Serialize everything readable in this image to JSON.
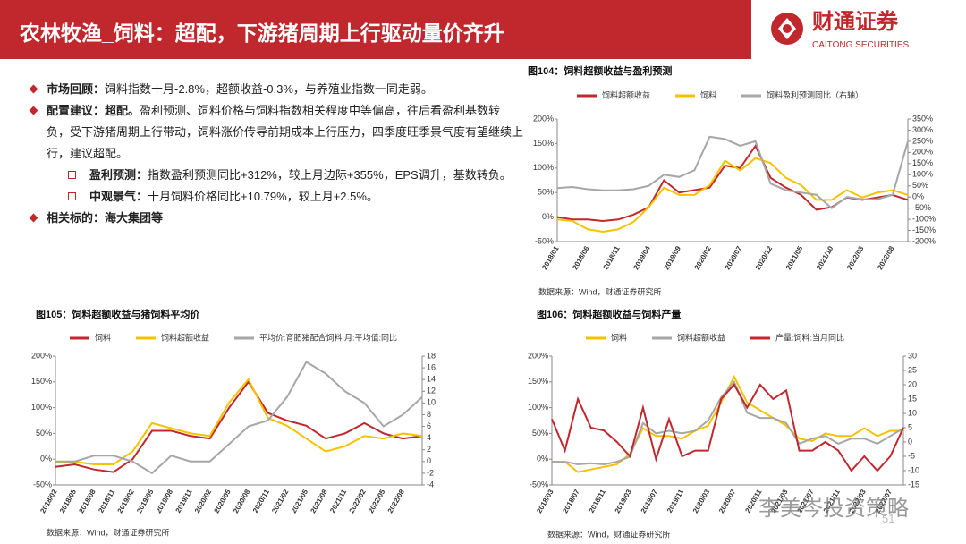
{
  "header": {
    "title": "农林牧渔_饲料：超配，下游猪周期上行驱动量价齐升",
    "logo_cn": "财通证券",
    "logo_en": "CAITONG SECURITIES"
  },
  "bullets": [
    {
      "label": "市场回顾：",
      "text": "饲料指数十月-2.8%，超额收益-0.3%，与养殖业指数一同走弱。"
    },
    {
      "label": "配置建议：超配。",
      "text": "盈利预测、饲料价格与饲料指数相关程度中等偏高，往后看盈利基数转负，受下游猪周期上行带动，饲料涨价传导前期成本上行压力，四季度旺季景气度有望继续上行，建议超配。"
    },
    {
      "label": "盈利预测：",
      "text": "指数盈利预测同比+312%，较上月边际+355%，EPS调升，基数转负。"
    },
    {
      "label": "中观景气：",
      "text": "十月饲料价格同比+10.79%，较上月+2.5%。"
    },
    {
      "label": "相关标的：海大集团等"
    }
  ],
  "page_number": "51",
  "watermark": "李美岑投资策略",
  "chart_data": [
    {
      "type": "line",
      "title": "图104：饲料超额收益与盈利预测",
      "source": "数据来源：Wind，财通证券研究所",
      "categories": [
        "2018/01",
        null,
        "2018/06",
        null,
        "2018/11",
        null,
        "2019/04",
        null,
        "2019/09",
        null,
        "2020/02",
        null,
        "2020/07",
        null,
        "2020/12",
        null,
        "2021/05",
        null,
        "2021/10",
        null,
        "2022/03",
        null,
        "2022/08",
        null
      ],
      "series": [
        {
          "name": "饲料超额收益",
          "color": "#c0282d",
          "values": [
            0,
            -5,
            -5,
            -8,
            -5,
            5,
            20,
            75,
            50,
            55,
            60,
            105,
            100,
            145,
            80,
            60,
            45,
            15,
            20,
            40,
            35,
            40,
            45,
            35
          ]
        },
        {
          "name": "饲料",
          "color": "#f5c200",
          "values": [
            -5,
            -8,
            -25,
            -30,
            -25,
            -10,
            20,
            60,
            45,
            45,
            65,
            115,
            95,
            120,
            110,
            80,
            65,
            35,
            35,
            55,
            40,
            50,
            55,
            45
          ]
        },
        {
          "name": "饲料盈利预测同比（右轴）",
          "color": "#a6a6a6",
          "axis": "y2",
          "values": [
            40,
            45,
            35,
            30,
            30,
            35,
            50,
            100,
            90,
            120,
            270,
            260,
            230,
            250,
            60,
            30,
            20,
            10,
            -50,
            0,
            -10,
            -10,
            10,
            250
          ]
        }
      ],
      "ylim": [
        -50,
        200
      ],
      "yticks": [
        {
          "value": -50,
          "label": "-50%"
        },
        {
          "value": 0,
          "label": "0%"
        },
        {
          "value": 50,
          "label": "50%"
        },
        {
          "value": 100,
          "label": "100%"
        },
        {
          "value": 150,
          "label": "150%"
        },
        {
          "value": 200,
          "label": "200%"
        }
      ],
      "y2lim": [
        -200,
        350
      ],
      "y2ticks": [
        {
          "value": -200,
          "label": "-200%"
        },
        {
          "value": -150,
          "label": "-150%"
        },
        {
          "value": -100,
          "label": "-100%"
        },
        {
          "value": -50,
          "label": "-50%"
        },
        {
          "value": 0,
          "label": "0%"
        },
        {
          "value": 50,
          "label": "50%"
        },
        {
          "value": 100,
          "label": "100%"
        },
        {
          "value": 150,
          "label": "150%"
        },
        {
          "value": 200,
          "label": "200%"
        },
        {
          "value": 250,
          "label": "250%"
        },
        {
          "value": 300,
          "label": "300%"
        },
        {
          "value": 350,
          "label": "350%"
        }
      ],
      "grid": false
    },
    {
      "type": "line",
      "title": "图105：饲料超额收益与猪饲料平均价",
      "source": "数据来源：Wind，财通证券研究所",
      "categories": [
        "2018/02",
        "2018/05",
        "2018/08",
        "2018/11",
        "2019/02",
        "2019/05",
        "2019/08",
        "2019/11",
        "2020/02",
        "2020/05",
        "2020/08",
        "2020/11",
        "2021/02",
        "2021/05",
        "2021/08",
        "2021/11",
        "2022/02",
        "2022/05",
        "2022/08",
        null
      ],
      "series": [
        {
          "name": "饲料",
          "color": "#c0282d",
          "values": [
            -15,
            -10,
            -20,
            -25,
            0,
            55,
            55,
            45,
            40,
            100,
            150,
            90,
            75,
            65,
            40,
            50,
            70,
            50,
            40,
            45
          ]
        },
        {
          "name": "饲料超额收益",
          "color": "#f5c200",
          "values": [
            -5,
            -5,
            -10,
            -10,
            15,
            70,
            60,
            50,
            45,
            110,
            155,
            80,
            65,
            40,
            15,
            25,
            45,
            40,
            50,
            45
          ]
        },
        {
          "name": "平均价:育肥猪配合饲料:月:平均值:同比",
          "color": "#a6a6a6",
          "axis": "y2",
          "values": [
            0,
            0,
            1,
            1,
            0,
            -2,
            1,
            0,
            0,
            3,
            6,
            7,
            11,
            17,
            15,
            12,
            10,
            6,
            8,
            11
          ]
        }
      ],
      "ylim": [
        -50,
        200
      ],
      "yticks": [
        {
          "value": -50,
          "label": "-50%"
        },
        {
          "value": 0,
          "label": "0%"
        },
        {
          "value": 50,
          "label": "50%"
        },
        {
          "value": 100,
          "label": "100%"
        },
        {
          "value": 150,
          "label": "150%"
        },
        {
          "value": 200,
          "label": "200%"
        }
      ],
      "y2lim": [
        -4,
        18
      ],
      "y2ticks": [
        -4,
        -2,
        0,
        2,
        4,
        6,
        8,
        10,
        12,
        14,
        16,
        18
      ],
      "grid": false
    },
    {
      "type": "line",
      "title": "图106：饲料超额收益与饲料产量",
      "source": "数据来源：Wind，财通证券研究所",
      "categories": [
        "2018/03",
        null,
        "2018/07",
        null,
        "2018/11",
        null,
        "2019/03",
        null,
        "2019/07",
        null,
        "2019/11",
        null,
        "2020/03",
        null,
        "2020/07",
        null,
        "2020/11",
        null,
        "2021/03",
        null,
        "2021/07",
        null,
        "2021/11",
        null,
        "2022/03",
        null,
        "2022/07",
        null
      ],
      "series": [
        {
          "name": "饲料",
          "color": "#f5c200",
          "values": [
            -5,
            -5,
            -25,
            -20,
            -15,
            -10,
            10,
            60,
            45,
            45,
            40,
            55,
            65,
            110,
            160,
            110,
            95,
            80,
            65,
            40,
            35,
            50,
            45,
            45,
            60,
            45,
            55,
            55
          ]
        },
        {
          "name": "饲料超额收益",
          "color": "#a6a6a6",
          "values": [
            -5,
            -5,
            -10,
            -8,
            -10,
            -5,
            5,
            70,
            50,
            55,
            50,
            55,
            75,
            120,
            150,
            90,
            80,
            80,
            70,
            30,
            40,
            45,
            30,
            40,
            40,
            30,
            45,
            60
          ]
        },
        {
          "name": "产量:饲料:当月同比",
          "color": "#c0282d",
          "axis": "y2",
          "values": [
            8,
            -3,
            15,
            5,
            4,
            0,
            -5,
            12,
            -6,
            8,
            -5,
            -3,
            -3,
            15,
            20,
            12,
            20,
            15,
            18,
            -3,
            -3,
            0,
            -3,
            -10,
            -5,
            -10,
            -5,
            5
          ]
        }
      ],
      "ylim": [
        -50,
        200
      ],
      "yticks": [
        {
          "value": -50,
          "label": "-50%"
        },
        {
          "value": 0,
          "label": "0%"
        },
        {
          "value": 50,
          "label": "50%"
        },
        {
          "value": 100,
          "label": "100%"
        },
        {
          "value": 150,
          "label": "150%"
        },
        {
          "value": 200,
          "label": "200%"
        }
      ],
      "y2lim": [
        -15,
        30
      ],
      "y2ticks": [
        -15,
        -10,
        -5,
        0,
        5,
        10,
        15,
        20,
        25,
        30
      ],
      "grid": false
    }
  ]
}
